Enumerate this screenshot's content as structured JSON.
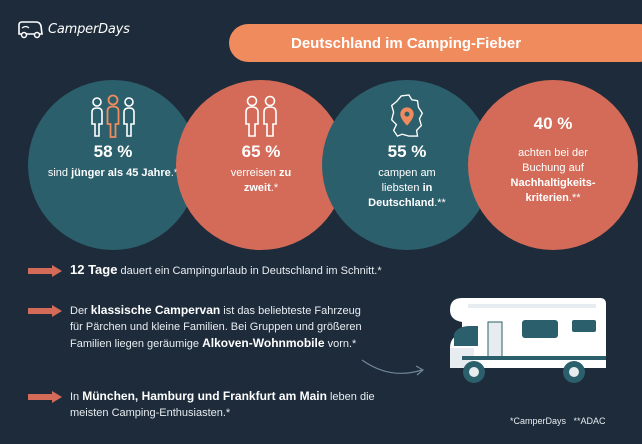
{
  "brand": {
    "name": "CamperDays"
  },
  "title": "Deutschland im Camping-Fieber",
  "stats": [
    {
      "pct": "58 %",
      "pre": "sind ",
      "bold": "jünger als 45 Jahre",
      "post": ".*",
      "icon": "people-icon"
    },
    {
      "pct": "65 %",
      "pre": "verreisen ",
      "bold": "zu zweit",
      "post": ".*",
      "icon": "couple-icon"
    },
    {
      "pct": "55 %",
      "pre": "campen am liebsten ",
      "bold": "in Deutschland",
      "post": ".**",
      "icon": "germany-map-pin-icon"
    },
    {
      "pct": "40 %",
      "pre": "achten bei der Buchung auf ",
      "bold": "Nachhaltigkeits-kriterien",
      "post": ".**",
      "icon": ""
    }
  ],
  "facts": [
    {
      "bold": "12 Tage",
      "text": " dauert ein Campingurlaub in Deutschland im Schnitt.*"
    },
    {
      "pre": "Der ",
      "bold1": "klassische Campervan",
      "mid": " ist das beliebteste Fahrzeug für Pärchen und kleine Familien. Bei Gruppen und größeren Familien liegen geräumige ",
      "bold2": "Alkoven-Wohnmobile",
      "post": " vorn.*"
    },
    {
      "pre": "In ",
      "bold": "München, Hamburg und Frankfurt am Main",
      "post": " leben die meisten Camping-Enthusiasten.*"
    }
  ],
  "footnote": "*CamperDays   **ADAC",
  "colors": {
    "background": "#1d2b3a",
    "teal": "#2c5f6c",
    "coral": "#d46b58",
    "orange": "#f08b5e"
  }
}
